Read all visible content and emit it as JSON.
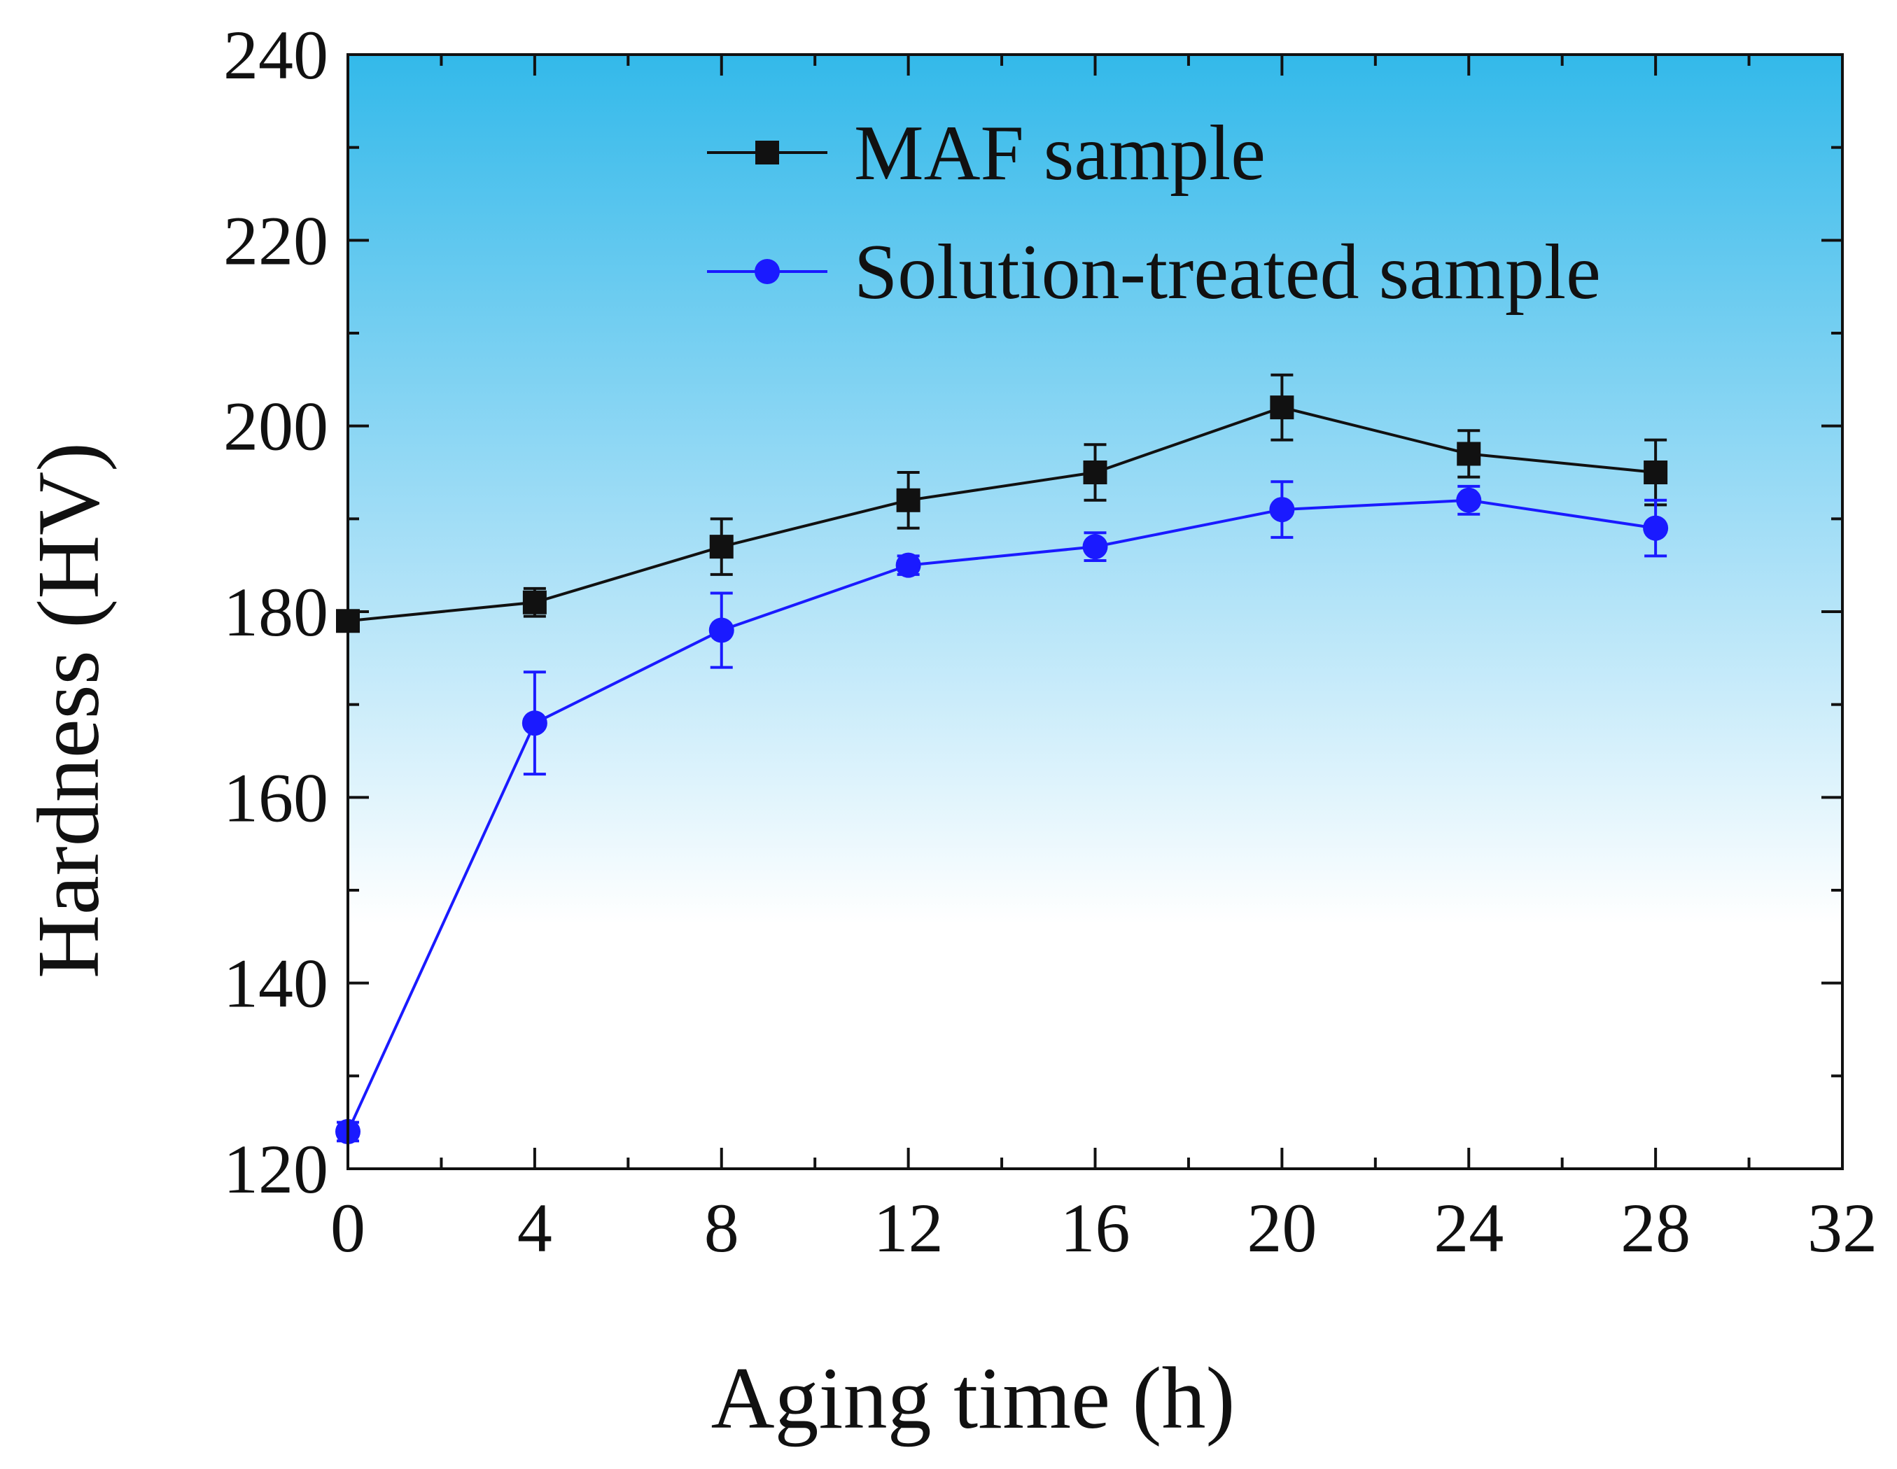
{
  "chart_data": {
    "type": "line",
    "xlabel": "Aging time (h)",
    "ylabel": "Hardness (HV)",
    "xlim": [
      0,
      32
    ],
    "ylim": [
      120,
      240
    ],
    "xticks": [
      0,
      4,
      8,
      12,
      16,
      20,
      24,
      28,
      32
    ],
    "yticks": [
      120,
      140,
      160,
      180,
      200,
      220,
      240
    ],
    "legend_position": "top-right",
    "background": "vertical gradient, sky blue at top fading to white below",
    "series": [
      {
        "name": "MAF sample",
        "color": "#111111",
        "marker": "square",
        "x": [
          0,
          4,
          8,
          12,
          16,
          20,
          24,
          28
        ],
        "y": [
          179,
          181,
          187,
          192,
          195,
          202,
          197,
          195
        ],
        "err": [
          1.0,
          1.5,
          3.0,
          3.0,
          3.0,
          3.5,
          2.5,
          3.5
        ]
      },
      {
        "name": "Solution-treated sample",
        "color": "#1a1aff",
        "marker": "circle",
        "x": [
          0,
          4,
          8,
          12,
          16,
          20,
          24,
          28
        ],
        "y": [
          124,
          168,
          178,
          185,
          187,
          191,
          192,
          189
        ],
        "err": [
          1.0,
          5.5,
          4.0,
          1.0,
          1.5,
          3.0,
          1.5,
          3.0
        ]
      }
    ]
  }
}
